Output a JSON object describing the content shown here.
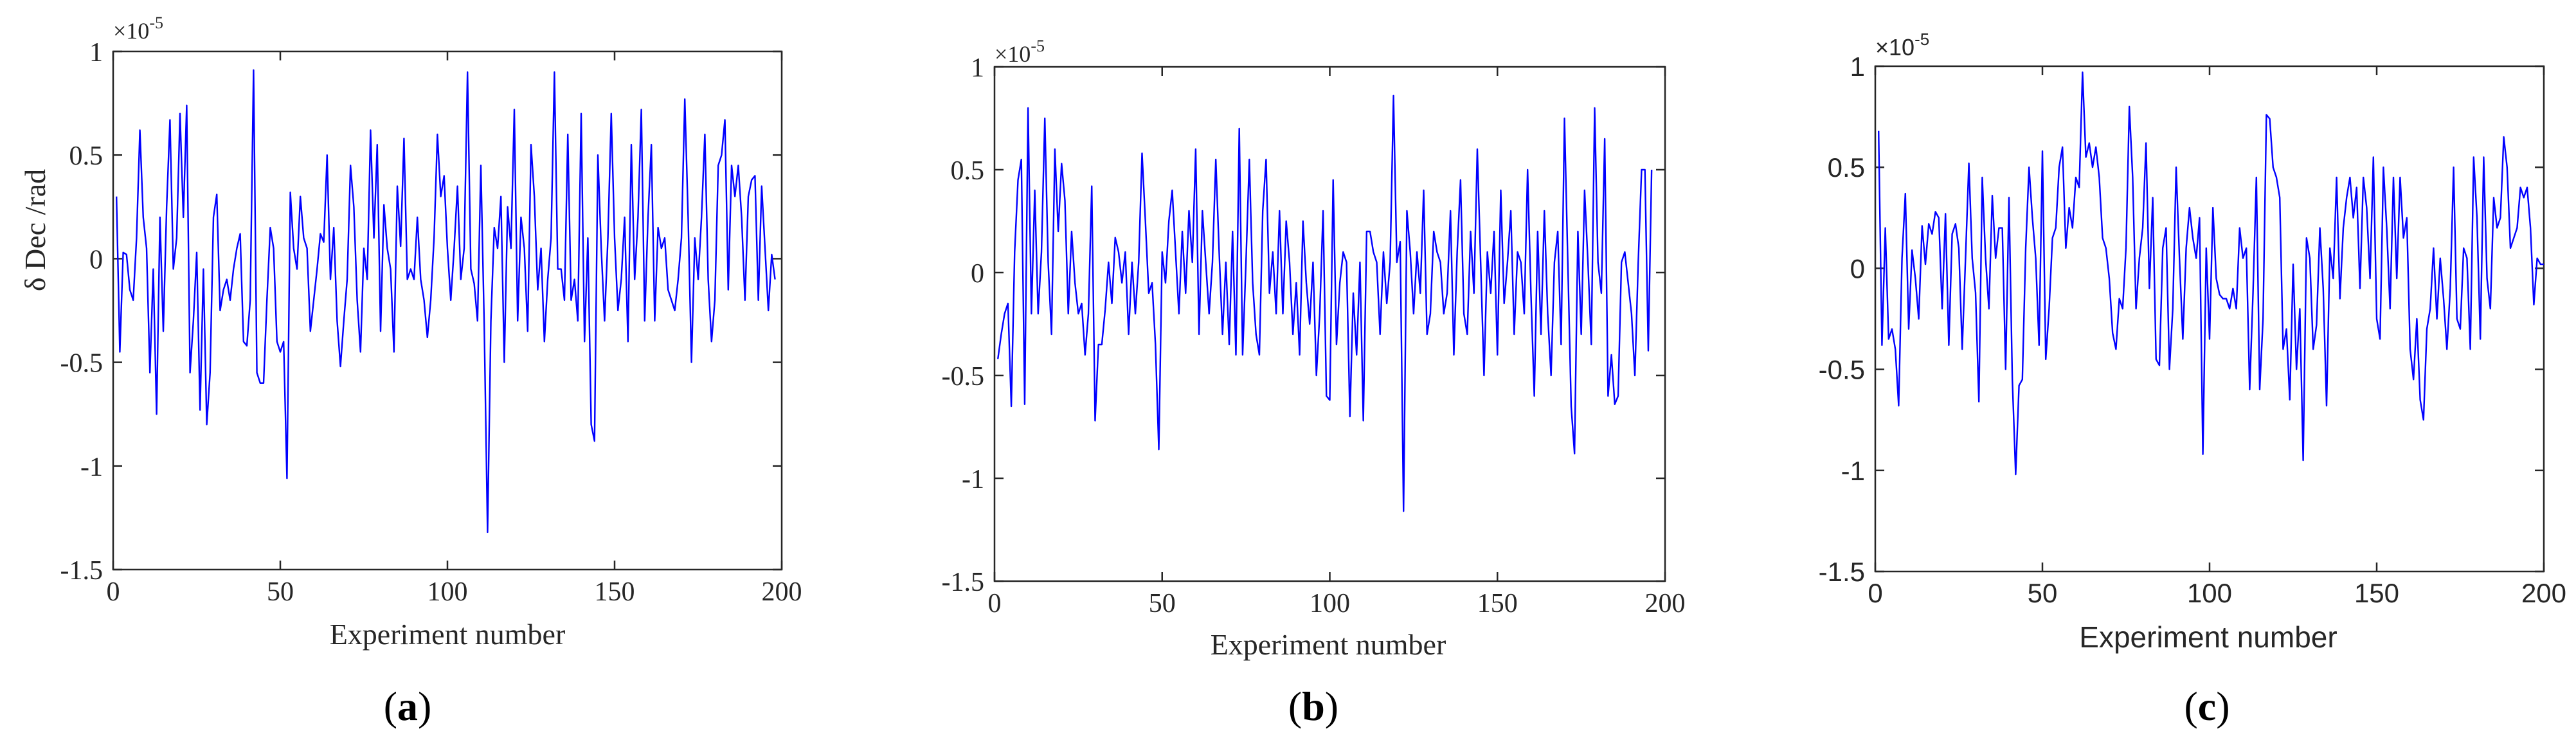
{
  "chart_data": [
    {
      "type": "line",
      "panel_label": "(a)",
      "sub_letter": "a",
      "title": "",
      "xlabel": "Experiment number",
      "ylabel": "δ Dec /rad",
      "y_multiplier": "×10",
      "y_exponent": "-5",
      "xlim": [
        0,
        200
      ],
      "ylim": [
        -1.5,
        1
      ],
      "xticks": [
        0,
        50,
        100,
        150,
        200
      ],
      "xtick_labels": [
        "0",
        "50",
        "100",
        "150",
        "200"
      ],
      "yticks": [
        -1.5,
        -1,
        -0.5,
        0,
        0.5,
        1
      ],
      "ytick_labels": [
        "-1.5",
        "-1",
        "-0.5",
        "0",
        "0.5",
        "1"
      ],
      "font": "serif",
      "color": "#0000ff",
      "series": [
        {
          "name": "δ Dec",
          "x_start": 1,
          "x_step": 1,
          "values": [
            0.3,
            -0.45,
            0.03,
            0.02,
            -0.15,
            -0.2,
            0.1,
            0.62,
            0.2,
            0.05,
            -0.55,
            -0.05,
            -0.75,
            0.2,
            -0.35,
            0.25,
            0.67,
            -0.05,
            0.1,
            0.7,
            0.2,
            0.74,
            -0.55,
            -0.3,
            0.03,
            -0.73,
            -0.05,
            -0.8,
            -0.55,
            0.2,
            0.31,
            -0.25,
            -0.15,
            -0.1,
            -0.2,
            -0.05,
            0.05,
            0.12,
            -0.4,
            -0.42,
            -0.2,
            0.91,
            -0.55,
            -0.6,
            -0.6,
            -0.2,
            0.15,
            0.05,
            -0.4,
            -0.45,
            -0.4,
            -1.06,
            0.32,
            0.05,
            -0.05,
            0.3,
            0.1,
            0.05,
            -0.35,
            -0.2,
            -0.05,
            0.12,
            0.08,
            0.5,
            -0.1,
            0.15,
            -0.3,
            -0.52,
            -0.3,
            -0.1,
            0.45,
            0.25,
            -0.2,
            -0.45,
            0.05,
            -0.1,
            0.62,
            0.1,
            0.55,
            -0.35,
            0.26,
            0.05,
            -0.05,
            -0.45,
            0.35,
            0.06,
            0.58,
            -0.1,
            -0.05,
            -0.1,
            0.2,
            -0.1,
            -0.2,
            -0.38,
            -0.2,
            0.1,
            0.6,
            0.3,
            0.4,
            0.05,
            -0.2,
            0.05,
            0.35,
            -0.1,
            0.05,
            0.9,
            -0.05,
            -0.12,
            -0.3,
            0.45,
            -0.32,
            -1.32,
            -0.3,
            0.15,
            0.05,
            0.3,
            -0.5,
            0.25,
            0.05,
            0.72,
            -0.3,
            0.2,
            0.05,
            -0.35,
            0.55,
            0.3,
            -0.15,
            0.05,
            -0.4,
            -0.1,
            0.1,
            0.9,
            -0.05,
            -0.05,
            -0.2,
            0.6,
            -0.2,
            -0.1,
            -0.3,
            0.7,
            -0.4,
            0.1,
            -0.8,
            -0.88,
            0.5,
            0.05,
            -0.3,
            0.1,
            0.7,
            0.1,
            -0.25,
            -0.1,
            0.2,
            -0.4,
            0.55,
            -0.1,
            0.2,
            0.72,
            -0.3,
            0.2,
            0.55,
            -0.3,
            0.15,
            0.05,
            0.1,
            -0.15,
            -0.2,
            -0.25,
            -0.1,
            0.1,
            0.77,
            0.2,
            -0.5,
            0.1,
            -0.1,
            0.2,
            0.6,
            -0.1,
            -0.4,
            -0.2,
            0.45,
            0.5,
            0.67,
            -0.15,
            0.45,
            0.3,
            0.45,
            0.2,
            -0.2,
            0.3,
            0.38,
            0.4,
            -0.2,
            0.35,
            0.05,
            -0.25,
            0.02,
            -0.1
          ]
        }
      ]
    },
    {
      "type": "line",
      "panel_label": "(b)",
      "sub_letter": "b",
      "title": "",
      "xlabel": "Experiment number",
      "ylabel": "",
      "y_multiplier": "×10",
      "y_exponent": "-5",
      "xlim": [
        0,
        200
      ],
      "ylim": [
        -1.5,
        1
      ],
      "xticks": [
        0,
        50,
        100,
        150,
        200
      ],
      "xtick_labels": [
        "0",
        "50",
        "100",
        "150",
        "200"
      ],
      "yticks": [
        -1.5,
        -1,
        -0.5,
        0,
        0.5,
        1
      ],
      "ytick_labels": [
        "-1.5",
        "-1",
        "-0.5",
        "0",
        "0.5",
        "1"
      ],
      "font": "serif",
      "color": "#0000ff",
      "series": [
        {
          "name": "δ Dec",
          "x_start": 1,
          "x_step": 1,
          "values": [
            -0.42,
            -0.3,
            -0.2,
            -0.15,
            -0.65,
            0.1,
            0.45,
            0.55,
            -0.64,
            0.8,
            -0.2,
            0.4,
            -0.2,
            0.1,
            0.75,
            0.05,
            -0.3,
            0.6,
            0.2,
            0.53,
            0.35,
            -0.2,
            0.2,
            -0.05,
            -0.2,
            -0.15,
            -0.4,
            -0.2,
            0.42,
            -0.72,
            -0.35,
            -0.35,
            -0.18,
            0.05,
            -0.15,
            0.17,
            0.1,
            -0.05,
            0.1,
            -0.3,
            0.05,
            -0.2,
            0.05,
            0.58,
            0.25,
            -0.1,
            -0.05,
            -0.35,
            -0.86,
            0.1,
            -0.05,
            0.25,
            0.4,
            0.1,
            -0.2,
            0.2,
            -0.1,
            0.3,
            0.05,
            0.6,
            -0.3,
            0.3,
            0.05,
            -0.2,
            0.05,
            0.55,
            0.1,
            -0.3,
            0.05,
            -0.35,
            0.2,
            -0.4,
            0.7,
            -0.4,
            0.05,
            0.55,
            -0.05,
            -0.3,
            -0.4,
            0.3,
            0.55,
            -0.1,
            0.1,
            -0.2,
            0.3,
            -0.2,
            0.25,
            0.05,
            -0.3,
            -0.05,
            -0.4,
            0.25,
            -0.05,
            -0.25,
            0.05,
            -0.5,
            -0.2,
            0.3,
            -0.6,
            -0.62,
            0.45,
            -0.35,
            -0.05,
            0.1,
            0.05,
            -0.7,
            -0.1,
            -0.4,
            0.05,
            -0.72,
            0.2,
            0.2,
            0.1,
            0.05,
            -0.3,
            0.1,
            -0.15,
            0.05,
            0.86,
            0.05,
            0.15,
            -1.16,
            0.3,
            0.1,
            -0.2,
            0.1,
            -0.1,
            0.4,
            -0.3,
            -0.2,
            0.2,
            0.1,
            0.05,
            -0.2,
            -0.1,
            0.3,
            -0.4,
            0.1,
            0.45,
            -0.2,
            -0.3,
            0.2,
            -0.1,
            0.6,
            0.05,
            -0.5,
            0.1,
            -0.1,
            0.2,
            -0.4,
            0.4,
            -0.15,
            0.05,
            0.3,
            -0.3,
            0.1,
            0.05,
            -0.2,
            0.5,
            -0.1,
            -0.6,
            0.2,
            -0.3,
            0.3,
            -0.2,
            -0.5,
            0.05,
            0.2,
            -0.35,
            0.75,
            0.05,
            -0.65,
            -0.88,
            0.2,
            -0.3,
            0.4,
            0.05,
            -0.35,
            0.8,
            0.05,
            -0.1,
            0.65,
            -0.6,
            -0.4,
            -0.64,
            -0.6,
            0.05,
            0.1,
            -0.05,
            -0.2,
            -0.5,
            0.05,
            0.5,
            0.5,
            -0.38,
            0.5
          ]
        }
      ]
    },
    {
      "type": "line",
      "panel_label": "(c)",
      "sub_letter": "c",
      "title": "",
      "xlabel": "Experiment number",
      "ylabel": "",
      "y_multiplier": "×10",
      "y_exponent": "-5",
      "xlim": [
        0,
        200
      ],
      "ylim": [
        -1.5,
        1
      ],
      "xticks": [
        0,
        50,
        100,
        150,
        200
      ],
      "xtick_labels": [
        "0",
        "50",
        "100",
        "150",
        "200"
      ],
      "yticks": [
        -1.5,
        -1,
        -0.5,
        0,
        0.5,
        1
      ],
      "ytick_labels": [
        "-1.5",
        "-1",
        "-0.5",
        "0",
        "0.5",
        "1"
      ],
      "font": "sans",
      "color": "#0000ff",
      "series": [
        {
          "name": "δ Dec",
          "x_start": 1,
          "x_step": 1,
          "values": [
            0.68,
            -0.38,
            0.2,
            -0.35,
            -0.3,
            -0.4,
            -0.68,
            0.05,
            0.37,
            -0.3,
            0.09,
            -0.05,
            -0.25,
            0.21,
            0.02,
            0.22,
            0.17,
            0.28,
            0.25,
            -0.2,
            0.27,
            -0.38,
            0.17,
            0.22,
            0.1,
            -0.4,
            0.05,
            0.52,
            0.05,
            -0.12,
            -0.66,
            0.45,
            0.05,
            -0.2,
            0.36,
            0.05,
            0.2,
            0.2,
            -0.5,
            0.35,
            -0.55,
            -1.02,
            -0.58,
            -0.55,
            0.1,
            0.5,
            0.25,
            0.05,
            -0.38,
            0.58,
            -0.45,
            -0.2,
            0.15,
            0.2,
            0.5,
            0.6,
            0.1,
            0.3,
            0.2,
            0.45,
            0.4,
            0.97,
            0.55,
            0.62,
            0.5,
            0.6,
            0.45,
            0.15,
            0.1,
            -0.05,
            -0.32,
            -0.4,
            -0.15,
            -0.2,
            0.1,
            0.8,
            0.45,
            -0.2,
            0.05,
            0.2,
            0.62,
            -0.1,
            0.35,
            -0.45,
            -0.48,
            0.1,
            0.2,
            -0.5,
            -0.2,
            0.5,
            0.05,
            -0.35,
            0.1,
            0.3,
            0.15,
            0.05,
            0.25,
            -0.92,
            0.1,
            -0.35,
            0.3,
            -0.05,
            -0.13,
            -0.15,
            -0.15,
            -0.2,
            -0.1,
            -0.2,
            0.2,
            0.05,
            0.1,
            -0.6,
            -0.12,
            0.45,
            -0.6,
            -0.25,
            0.76,
            0.74,
            0.5,
            0.45,
            0.35,
            -0.4,
            -0.3,
            -0.65,
            0.02,
            -0.5,
            -0.2,
            -0.95,
            0.15,
            0.05,
            -0.4,
            -0.28,
            0.2,
            -0.1,
            -0.68,
            0.1,
            -0.05,
            0.45,
            -0.15,
            0.2,
            0.35,
            0.45,
            0.25,
            0.4,
            -0.1,
            0.45,
            0.3,
            -0.05,
            0.55,
            -0.25,
            -0.35,
            0.5,
            0.2,
            -0.2,
            0.45,
            -0.05,
            0.45,
            0.15,
            0.25,
            -0.4,
            -0.55,
            -0.25,
            -0.65,
            -0.75,
            -0.3,
            -0.2,
            0.1,
            -0.25,
            0.05,
            -0.15,
            -0.4,
            -0.1,
            0.5,
            -0.25,
            -0.3,
            0.1,
            0.05,
            -0.4,
            0.55,
            0.25,
            -0.35,
            0.55,
            -0.05,
            -0.2,
            0.35,
            0.2,
            0.25,
            0.65,
            0.5,
            0.1,
            0.15,
            0.2,
            0.4,
            0.35,
            0.4,
            0.2,
            -0.18,
            0.05,
            0.02,
            0.02
          ]
        }
      ]
    }
  ]
}
